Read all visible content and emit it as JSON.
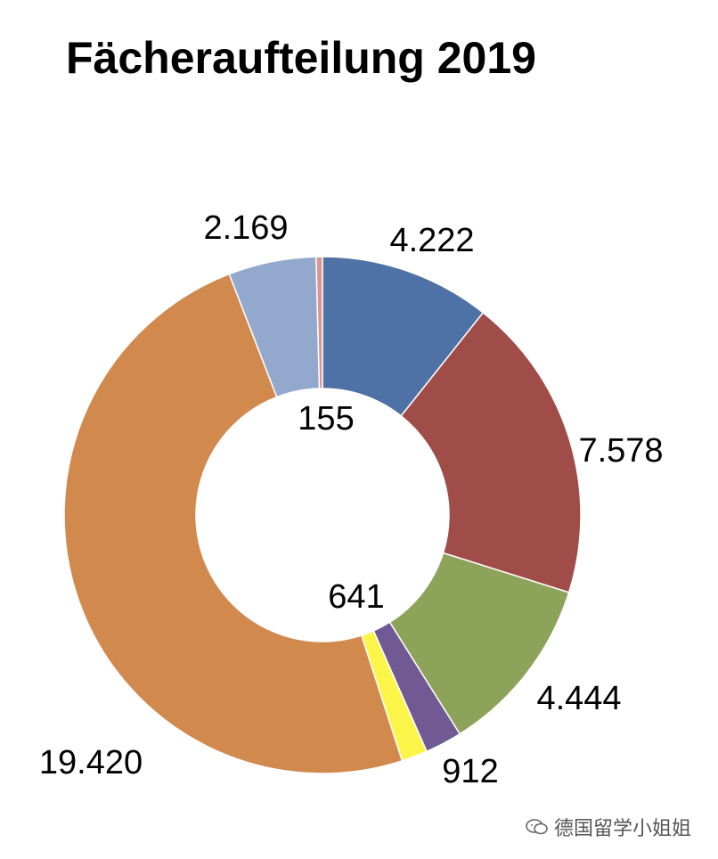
{
  "chart_data": {
    "type": "pie",
    "variant": "donut",
    "title": "Fächeraufteilung 2019",
    "slices": [
      {
        "value": 4222,
        "label": "4.222",
        "color": "#4e72a6"
      },
      {
        "value": 7578,
        "label": "7.578",
        "color": "#a04d49"
      },
      {
        "value": 4444,
        "label": "4.444",
        "color": "#8ea35a"
      },
      {
        "value": 912,
        "label": "912",
        "color": "#715a93"
      },
      {
        "value": 641,
        "label": "641",
        "color": "#fbf54a"
      },
      {
        "value": 19420,
        "label": "19.420",
        "color": "#d1894e"
      },
      {
        "value": 2169,
        "label": "2.169",
        "color": "#93a8cd"
      },
      {
        "value": 155,
        "label": "155",
        "color": "#d9958f"
      }
    ],
    "legend": "none"
  },
  "watermark": {
    "text": "德国留学小姐姐",
    "icon": "wechat-icon"
  }
}
